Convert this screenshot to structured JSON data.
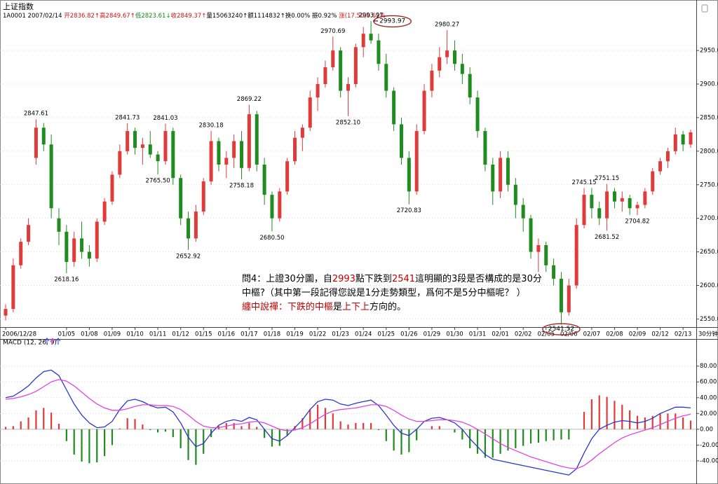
{
  "chart_data": [
    {
      "type": "candlestick",
      "title": "上证指数",
      "header": [
        {
          "text": "1A0001 2007/02/14 "
        },
        {
          "text": "开2836.82↑",
          "color": "#d01010"
        },
        {
          "text": "高2849.67↑",
          "color": "#d01010"
        },
        {
          "text": "低2823.61↓",
          "color": "#108a10"
        },
        {
          "text": "收2849.37↑",
          "color": "#d01010"
        },
        {
          "text": "量15063240↑"
        },
        {
          "text": "额1114832↑"
        },
        {
          "text": "换0.00% "
        },
        {
          "text": "振0.92% "
        },
        {
          "text": "涨(17.50)0.62%",
          "color": "#d01010"
        }
      ],
      "categories": [
        "2006/12/28",
        null,
        null,
        null,
        null,
        null,
        null,
        null,
        "01/05",
        null,
        null,
        "01/08",
        null,
        null,
        "01/09",
        null,
        null,
        "01/10",
        null,
        null,
        "01/11",
        null,
        null,
        "01/12",
        null,
        null,
        "01/15",
        null,
        null,
        "01/16",
        null,
        null,
        "01/17",
        null,
        null,
        "01/18",
        null,
        null,
        "01/19",
        null,
        null,
        "01/22",
        null,
        null,
        "01/23",
        null,
        null,
        "01/24",
        null,
        null,
        "01/25",
        null,
        null,
        "01/26",
        null,
        null,
        "01/29",
        null,
        null,
        "01/30",
        null,
        null,
        "01/31",
        null,
        null,
        "02/01",
        null,
        null,
        "02/02",
        null,
        null,
        "02/05",
        null,
        null,
        "02/06",
        null,
        null,
        "02/07",
        null,
        null,
        "02/08",
        null,
        null,
        "02/09",
        null,
        null,
        "02/12",
        null,
        null,
        "02/13",
        null
      ],
      "candles": [
        [
          2555,
          2572,
          2548,
          2565
        ],
        [
          2565,
          2640,
          2560,
          2630
        ],
        [
          2630,
          2670,
          2625,
          2665
        ],
        [
          2665,
          2700,
          2660,
          2690
        ],
        [
          2790,
          2847.61,
          2780,
          2835
        ],
        [
          2835,
          2842,
          2800,
          2810
        ],
        [
          2810,
          2825,
          2700,
          2715
        ],
        [
          2700,
          2715,
          2660,
          2680
        ],
        [
          2680,
          2690,
          2618.16,
          2635
        ],
        [
          2635,
          2680,
          2628,
          2670
        ],
        [
          2670,
          2695,
          2640,
          2650
        ],
        [
          2650,
          2660,
          2628,
          2640
        ],
        [
          2640,
          2700,
          2635,
          2695
        ],
        [
          2695,
          2730,
          2690,
          2725
        ],
        [
          2725,
          2770,
          2720,
          2765
        ],
        [
          2765,
          2810,
          2760,
          2800
        ],
        [
          2800,
          2841.73,
          2795,
          2830
        ],
        [
          2830,
          2835,
          2795,
          2805
        ],
        [
          2805,
          2820,
          2780,
          2810
        ],
        [
          2810,
          2830,
          2790,
          2795
        ],
        [
          2795,
          2800,
          2765.5,
          2785
        ],
        [
          2785,
          2841.03,
          2780,
          2830
        ],
        [
          2830,
          2835,
          2750,
          2760
        ],
        [
          2760,
          2765,
          2690,
          2700
        ],
        [
          2700,
          2710,
          2652.92,
          2670
        ],
        [
          2670,
          2720,
          2665,
          2710
        ],
        [
          2710,
          2760,
          2705,
          2755
        ],
        [
          2755,
          2830.18,
          2750,
          2815
        ],
        [
          2815,
          2820,
          2770,
          2780
        ],
        [
          2780,
          2800,
          2760,
          2790
        ],
        [
          2790,
          2825,
          2775,
          2815
        ],
        [
          2815,
          2830,
          2758.18,
          2775
        ],
        [
          2775,
          2869.22,
          2770,
          2855
        ],
        [
          2855,
          2860,
          2770,
          2780
        ],
        [
          2780,
          2790,
          2720,
          2735
        ],
        [
          2735,
          2740,
          2680.5,
          2700
        ],
        [
          2700,
          2745,
          2695,
          2740
        ],
        [
          2740,
          2790,
          2735,
          2785
        ],
        [
          2785,
          2830,
          2780,
          2820
        ],
        [
          2820,
          2840,
          2800,
          2835
        ],
        [
          2835,
          2890,
          2830,
          2880
        ],
        [
          2880,
          2910,
          2860,
          2900
        ],
        [
          2900,
          2935,
          2895,
          2925
        ],
        [
          2925,
          2970.69,
          2920,
          2950
        ],
        [
          2950,
          2955,
          2880,
          2890
        ],
        [
          2890,
          2910,
          2852.1,
          2900
        ],
        [
          2900,
          2960,
          2895,
          2955
        ],
        [
          2955,
          2985,
          2940,
          2975
        ],
        [
          2975,
          2993.97,
          2960,
          2965
        ],
        [
          2965,
          2975,
          2920,
          2930
        ],
        [
          2930,
          2945,
          2880,
          2890
        ],
        [
          2890,
          2895,
          2830,
          2840
        ],
        [
          2840,
          2850,
          2780,
          2790
        ],
        [
          2790,
          2800,
          2720.83,
          2740
        ],
        [
          2740,
          2840,
          2735,
          2830
        ],
        [
          2830,
          2900,
          2825,
          2890
        ],
        [
          2890,
          2930,
          2880,
          2920
        ],
        [
          2920,
          2955,
          2910,
          2940
        ],
        [
          2940,
          2980.27,
          2930,
          2950
        ],
        [
          2950,
          2965,
          2920,
          2930
        ],
        [
          2930,
          2945,
          2900,
          2915
        ],
        [
          2915,
          2925,
          2870,
          2880
        ],
        [
          2880,
          2890,
          2820,
          2830
        ],
        [
          2830,
          2835,
          2770,
          2780
        ],
        [
          2780,
          2790,
          2720,
          2740
        ],
        [
          2740,
          2800,
          2730,
          2790
        ],
        [
          2790,
          2800,
          2740,
          2750
        ],
        [
          2750,
          2760,
          2700,
          2720
        ],
        [
          2720,
          2730,
          2680,
          2700
        ],
        [
          2700,
          2705,
          2640,
          2650
        ],
        [
          2650,
          2670,
          2620,
          2660
        ],
        [
          2660,
          2665,
          2620,
          2630
        ],
        [
          2630,
          2640,
          2600,
          2610
        ],
        [
          2610,
          2620,
          2541.52,
          2560
        ],
        [
          2560,
          2610,
          2555,
          2600
        ],
        [
          2600,
          2700,
          2595,
          2690
        ],
        [
          2690,
          2745.15,
          2685,
          2735
        ],
        [
          2735,
          2745,
          2700,
          2715
        ],
        [
          2715,
          2725,
          2690,
          2700
        ],
        [
          2700,
          2751.15,
          2681.52,
          2740
        ],
        [
          2740,
          2745,
          2715,
          2725
        ],
        [
          2725,
          2740,
          2710,
          2730
        ],
        [
          2730,
          2735,
          2705,
          2715
        ],
        [
          2715,
          2725,
          2704.82,
          2720
        ],
        [
          2720,
          2745,
          2715,
          2740
        ],
        [
          2740,
          2775,
          2735,
          2770
        ],
        [
          2770,
          2790,
          2765,
          2785
        ],
        [
          2785,
          2805,
          2775,
          2800
        ],
        [
          2800,
          2835,
          2795,
          2825
        ],
        [
          2825,
          2830,
          2800,
          2810
        ],
        [
          2810,
          2832,
          2805,
          2828
        ]
      ],
      "up_color": "#e03a3a",
      "down_color": "#1e8c1e",
      "ylim": [
        2540,
        3020
      ],
      "yticks": [
        {
          "value": 2550,
          "label": "2550.00"
        },
        {
          "value": 2600,
          "label": "2600.00"
        },
        {
          "value": 2650,
          "label": "2650.00"
        },
        {
          "value": 2700,
          "label": "2700.00"
        },
        {
          "value": 2750,
          "label": "2750.00"
        },
        {
          "value": 2800,
          "label": "2800.00"
        },
        {
          "value": 2850,
          "label": "2850.00"
        },
        {
          "value": 2900,
          "label": "2900.00"
        },
        {
          "value": 2950,
          "label": "2950.00"
        }
      ],
      "grid": true,
      "period": "30分钟",
      "annotations": [
        {
          "index": 4,
          "value": 2847.61,
          "label": "2847.61"
        },
        {
          "index": 8,
          "value": 2618.16,
          "label": "2618.16"
        },
        {
          "index": 16,
          "value": 2841.73,
          "label": "2841.73"
        },
        {
          "index": 20,
          "value": 2765.5,
          "label": "2765.50"
        },
        {
          "index": 21,
          "value": 2841.03,
          "label": "2841.03"
        },
        {
          "index": 24,
          "value": 2652.92,
          "label": "2652.92"
        },
        {
          "index": 27,
          "value": 2830.18,
          "label": "2830.18"
        },
        {
          "index": 31,
          "value": 2758.18,
          "label": "2758.18"
        },
        {
          "index": 32,
          "value": 2869.22,
          "label": "2869.22"
        },
        {
          "index": 35,
          "value": 2680.5,
          "label": "2680.50"
        },
        {
          "index": 43,
          "value": 2970.69,
          "label": "2970.69"
        },
        {
          "index": 45,
          "value": 2852.1,
          "label": "2852.10"
        },
        {
          "index": 48,
          "value": 2993.97,
          "label": "2993.97"
        },
        {
          "index": 48,
          "value": 2993.97,
          "label": "2993.97",
          "circled": true
        },
        {
          "index": 53,
          "value": 2720.83,
          "label": "2720.83"
        },
        {
          "index": 58,
          "value": 2980.27,
          "label": "2980.27"
        },
        {
          "index": 73,
          "value": 2541.52,
          "label": "2541.52",
          "circled": true
        },
        {
          "index": 76,
          "value": 2745.15,
          "label": "2745.15"
        },
        {
          "index": 79,
          "value": 2751.15,
          "label": "2751.15"
        },
        {
          "index": 79,
          "value": 2681.52,
          "label": "2681.52"
        },
        {
          "index": 83,
          "value": 2704.82,
          "label": "2704.82"
        }
      ],
      "comment": [
        [
          {
            "text": "問4：上證30分圖，自"
          },
          {
            "text": "2993",
            "color": "#c00000"
          },
          {
            "text": "點下跌到"
          },
          {
            "text": "2541",
            "color": "#c00000"
          },
          {
            "text": "這明顯的3段是否構成的是30分"
          }
        ],
        [
          {
            "text": "中樞?（其中第一段記得您說是1分走勢類型，爲何不是5分中樞呢？ ）"
          }
        ],
        [
          {
            "text": "纏中說禪：下跌的中樞",
            "color": "#c00000"
          },
          {
            "text": "是"
          },
          {
            "text": "上下上",
            "color": "#c00000"
          },
          {
            "text": "方向的。"
          }
        ]
      ]
    },
    {
      "type": "macd",
      "title": "MACD (12, 26, 9)",
      "ylim": [
        -64,
        109
      ],
      "yticks": [
        {
          "value": 80,
          "label": "80.00"
        },
        {
          "value": 60,
          "label": "60.00"
        },
        {
          "value": 40,
          "label": "40.00"
        },
        {
          "value": 20,
          "label": "20.00"
        },
        {
          "value": 0,
          "label": "0.00"
        },
        {
          "value": -20,
          "label": "-20.00"
        },
        {
          "value": -40,
          "label": "-40.00"
        }
      ],
      "histogram": {
        "up_color": "#e03a3a",
        "down_color": "#1e8c1e",
        "values": [
          3,
          4,
          10,
          15,
          24,
          27,
          21,
          7,
          -15,
          -32,
          -41,
          -43,
          -42,
          -34,
          -20,
          1,
          14,
          13,
          6,
          -1,
          -4,
          -3,
          -10,
          -24,
          -39,
          -45,
          -31,
          -10,
          4,
          8,
          8,
          4,
          8,
          3,
          -11,
          -22,
          -21,
          -8,
          4,
          14,
          25,
          31,
          27,
          20,
          10,
          6,
          8,
          8,
          8,
          -1,
          -15,
          -27,
          -32,
          -29,
          -14,
          0,
          4,
          4,
          0,
          -4,
          -13,
          -24,
          -31,
          -36,
          -36,
          -31,
          -27,
          -24,
          -21,
          -18,
          -17,
          -15,
          -14,
          -13,
          -13,
          0,
          22,
          38,
          43,
          41,
          36,
          31,
          24,
          17,
          15,
          17,
          20,
          20,
          20,
          15,
          11
        ]
      },
      "series": [
        {
          "color": "#2a36d0",
          "values": [
            40,
            42,
            48,
            55,
            65,
            73,
            75,
            68,
            50,
            32,
            18,
            8,
            2,
            3,
            10,
            25,
            36,
            38,
            35,
            30,
            27,
            28,
            22,
            8,
            -10,
            -22,
            -18,
            -5,
            5,
            10,
            12,
            10,
            15,
            12,
            0,
            -12,
            -15,
            -8,
            2,
            12,
            25,
            35,
            38,
            37,
            32,
            30,
            33,
            35,
            37,
            30,
            18,
            5,
            -5,
            -8,
            0,
            10,
            14,
            15,
            12,
            8,
            0,
            -12,
            -22,
            -32,
            -38,
            -40,
            -42,
            -44,
            -46,
            -48,
            -50,
            -52,
            -54,
            -56,
            -58,
            -50,
            -30,
            -12,
            0,
            5,
            9,
            11,
            10,
            8,
            10,
            14,
            20,
            24,
            28,
            28,
            27
          ]
        },
        {
          "color": "#e044e0",
          "values": [
            38,
            39,
            41,
            44,
            48,
            54,
            60,
            63,
            61,
            55,
            47,
            39,
            32,
            27,
            24,
            24,
            26,
            29,
            31,
            31,
            30,
            30,
            29,
            25,
            18,
            10,
            4,
            2,
            2,
            4,
            6,
            7,
            9,
            10,
            8,
            4,
            0,
            -2,
            -1,
            2,
            7,
            13,
            19,
            23,
            25,
            26,
            27,
            29,
            31,
            31,
            29,
            24,
            18,
            13,
            10,
            10,
            11,
            12,
            12,
            11,
            9,
            5,
            0,
            -6,
            -12,
            -18,
            -23,
            -27,
            -31,
            -35,
            -38,
            -41,
            -44,
            -47,
            -49,
            -50,
            -46,
            -39,
            -31,
            -24,
            -17,
            -11,
            -7,
            -4,
            -1,
            2,
            6,
            10,
            14,
            17,
            19
          ]
        }
      ]
    }
  ]
}
